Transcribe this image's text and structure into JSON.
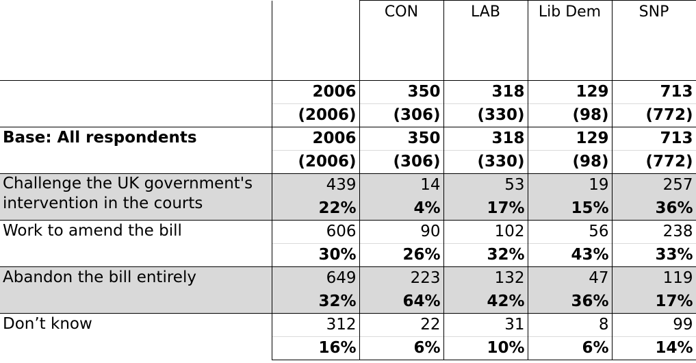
{
  "columns": [
    "",
    "",
    "CON",
    "LAB",
    "Lib Dem",
    "SNP"
  ],
  "rows": [
    {
      "label": "",
      "counts": [
        "2006",
        "350",
        "318",
        "129",
        "713"
      ],
      "weighted": [
        "(2006)",
        "(306)",
        "(330)",
        "(98)",
        "(772)"
      ],
      "shaded": false,
      "bold_label": false,
      "bold_counts": true
    },
    {
      "label": "Base: All respondents",
      "counts": [
        "2006",
        "350",
        "318",
        "129",
        "713"
      ],
      "weighted": [
        "(2006)",
        "(306)",
        "(330)",
        "(98)",
        "(772)"
      ],
      "shaded": false,
      "bold_label": true,
      "bold_counts": true
    },
    {
      "label": "Challenge the UK government's intervention in the courts",
      "label_line1": "Challenge the UK government's",
      "label_line2": "intervention in the courts",
      "counts": [
        "439",
        "14",
        "53",
        "19",
        "257"
      ],
      "weighted": [
        "22%",
        "4%",
        "17%",
        "15%",
        "36%"
      ],
      "shaded": true
    },
    {
      "label": "Work to amend the bill",
      "counts": [
        "606",
        "90",
        "102",
        "56",
        "238"
      ],
      "weighted": [
        "30%",
        "26%",
        "32%",
        "43%",
        "33%"
      ],
      "shaded": false
    },
    {
      "label": "Abandon the bill entirely",
      "counts": [
        "649",
        "223",
        "132",
        "47",
        "119"
      ],
      "weighted": [
        "32%",
        "64%",
        "42%",
        "36%",
        "17%"
      ],
      "shaded": true
    },
    {
      "label": "Don’t know",
      "counts": [
        "312",
        "22",
        "31",
        "8",
        "99"
      ],
      "weighted": [
        "16%",
        "6%",
        "10%",
        "6%",
        "14%"
      ],
      "shaded": false
    }
  ]
}
